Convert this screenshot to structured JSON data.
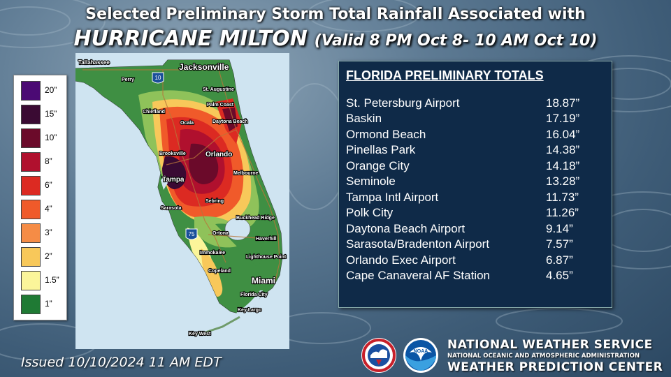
{
  "title": {
    "line1": "Selected Preliminary Storm Total Rainfall Associated with",
    "storm": "HURRICANE MILTON",
    "valid": "(Valid 8 PM Oct 8- 10 AM Oct 10)"
  },
  "legend": {
    "items": [
      {
        "label": "20”",
        "color": "#4b0a74"
      },
      {
        "label": "15”",
        "color": "#3a0a33"
      },
      {
        "label": "10”",
        "color": "#6b0a2a"
      },
      {
        "label": "8”",
        "color": "#b0102e"
      },
      {
        "label": "6”",
        "color": "#dc2a22"
      },
      {
        "label": "4”",
        "color": "#f05a2a"
      },
      {
        "label": "3”",
        "color": "#f58c46"
      },
      {
        "label": "2”",
        "color": "#f8c85a"
      },
      {
        "label": "1.5”",
        "color": "#fbf59a"
      },
      {
        "label": "1”",
        "color": "#1f7a34"
      }
    ]
  },
  "map": {
    "places": [
      {
        "label": "Tallahassee"
      },
      {
        "label": "Jacksonville"
      },
      {
        "label": "Perry"
      },
      {
        "label": "St. Augustine"
      },
      {
        "label": "Palm Coast"
      },
      {
        "label": "Chiefland"
      },
      {
        "label": "Ocala"
      },
      {
        "label": "Daytona Beach"
      },
      {
        "label": "Brooksville"
      },
      {
        "label": "Orlando"
      },
      {
        "label": "Melbourne"
      },
      {
        "label": "Tampa"
      },
      {
        "label": "Sebring"
      },
      {
        "label": "Sarasota"
      },
      {
        "label": "Buckhead Ridge"
      },
      {
        "label": "Ortona"
      },
      {
        "label": "Haverhill"
      },
      {
        "label": "Immokalee"
      },
      {
        "label": "Lighthouse Point"
      },
      {
        "label": "Copeland"
      },
      {
        "label": "Miami"
      },
      {
        "label": "Florida City"
      },
      {
        "label": "Key Largo"
      },
      {
        "label": "Key West"
      }
    ],
    "shields": [
      "10",
      "75"
    ]
  },
  "totals": {
    "heading": "FLORIDA PRELIMINARY TOTALS",
    "rows": [
      {
        "name": "St. Petersburg Airport",
        "value": "18.87”"
      },
      {
        "name": "Baskin",
        "value": "17.19”"
      },
      {
        "name": "Ormond Beach",
        "value": "16.04”"
      },
      {
        "name": "Pinellas Park",
        "value": "14.38”"
      },
      {
        "name": "Orange City",
        "value": "14.18”"
      },
      {
        "name": "Seminole",
        "value": "13.28”"
      },
      {
        "name": "Tampa Intl Airport",
        "value": "11.73”"
      },
      {
        "name": "Polk City",
        "value": "11.26”"
      },
      {
        "name": "Daytona Beach Airport",
        "value": "9.14”"
      },
      {
        "name": "Sarasota/Bradenton Airport",
        "value": "7.57”"
      },
      {
        "name": "Orlando Exec Airport",
        "value": "6.87”"
      },
      {
        "name": "Cape Canaveral AF Station",
        "value": "4.65”"
      }
    ]
  },
  "footer": {
    "issued": "Issued 10/10/2024  11 AM EDT",
    "org1": "NATIONAL WEATHER SERVICE",
    "org2": "NATIONAL OCEANIC AND ATMOSPHERIC ADMINISTRATION",
    "org3": "WEATHER PREDICTION CENTER",
    "nws_logo_icon": "nws-logo-icon",
    "noaa_logo_icon": "noaa-logo-icon",
    "noaa_logo_text": "NOAA"
  }
}
